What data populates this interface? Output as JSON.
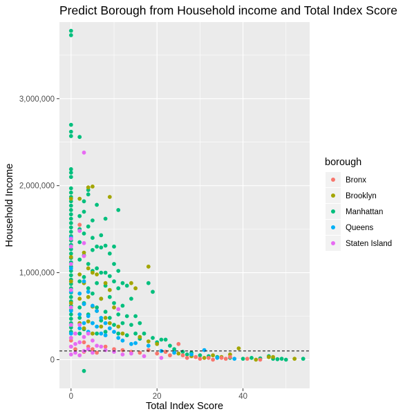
{
  "chart_data": {
    "type": "scatter",
    "title": "Predict Borough from Household income and Total Index Score",
    "xlabel": "Total Index Score",
    "ylabel": "Household Income",
    "xlim": [
      -2.7,
      55.5
    ],
    "ylim": [
      -330000,
      3880000
    ],
    "x_ticks": [
      {
        "value": 0,
        "label": "0"
      },
      {
        "value": 20,
        "label": "20"
      },
      {
        "value": 40,
        "label": "40"
      }
    ],
    "y_ticks": [
      {
        "value": 0,
        "label": "0"
      },
      {
        "value": 1000000,
        "label": "1,000,000"
      },
      {
        "value": 2000000,
        "label": "2,000,000"
      },
      {
        "value": 3000000,
        "label": "3,000,000"
      }
    ],
    "reference_line": {
      "y": 100000,
      "style": "dashed",
      "color": "#000000"
    },
    "grid": true,
    "panel_background": "#ebebeb",
    "legend": {
      "title": "borough",
      "position": "right",
      "entries": [
        {
          "label": "Bronx",
          "color": "#F8766D"
        },
        {
          "label": "Brooklyn",
          "color": "#A3A500"
        },
        {
          "label": "Manhattan",
          "color": "#00BF7D"
        },
        {
          "label": "Queens",
          "color": "#00B0F6"
        },
        {
          "label": "Staten Island",
          "color": "#E76BF3"
        }
      ]
    },
    "series": [
      {
        "name": "Manhattan",
        "color": "#00BF7D",
        "points": [
          [
            0,
            3780000
          ],
          [
            0,
            3730000
          ],
          [
            0,
            2700000
          ],
          [
            0,
            2620000
          ],
          [
            0,
            2570000
          ],
          [
            0,
            2190000
          ],
          [
            0,
            2150000
          ],
          [
            0,
            2100000
          ],
          [
            0,
            1970000
          ],
          [
            0,
            1920000
          ],
          [
            0,
            1870000
          ],
          [
            0,
            1820000
          ],
          [
            0,
            1770000
          ],
          [
            0,
            1720000
          ],
          [
            0,
            1670000
          ],
          [
            0,
            1620000
          ],
          [
            0,
            1570000
          ],
          [
            0,
            1520000
          ],
          [
            0,
            1470000
          ],
          [
            0,
            1420000
          ],
          [
            0,
            1370000
          ],
          [
            0,
            1320000
          ],
          [
            0,
            1270000
          ],
          [
            0,
            1220000
          ],
          [
            0,
            1170000
          ],
          [
            0,
            1120000
          ],
          [
            0,
            1070000
          ],
          [
            0,
            1020000
          ],
          [
            0,
            970000
          ],
          [
            0,
            920000
          ],
          [
            0,
            870000
          ],
          [
            0,
            820000
          ],
          [
            0,
            770000
          ],
          [
            0,
            720000
          ],
          [
            0,
            670000
          ],
          [
            0,
            620000
          ],
          [
            0,
            570000
          ],
          [
            0,
            520000
          ],
          [
            0,
            470000
          ],
          [
            0,
            420000
          ],
          [
            0,
            370000
          ],
          [
            0,
            320000
          ],
          [
            2,
            2560000
          ],
          [
            2,
            1650000
          ],
          [
            2,
            1500000
          ],
          [
            2,
            1350000
          ],
          [
            2,
            1150000
          ],
          [
            2,
            900000
          ],
          [
            2,
            600000
          ],
          [
            2,
            480000
          ],
          [
            2,
            300000
          ],
          [
            3,
            1820000
          ],
          [
            3,
            1700000
          ],
          [
            3,
            1450000
          ],
          [
            3,
            1200000
          ],
          [
            3,
            950000
          ],
          [
            3,
            650000
          ],
          [
            3,
            350000
          ],
          [
            3,
            -130000
          ],
          [
            4,
            1950000
          ],
          [
            4,
            1900000
          ],
          [
            4,
            1530000
          ],
          [
            4,
            1100000
          ],
          [
            4,
            820000
          ],
          [
            4,
            520000
          ],
          [
            5,
            1600000
          ],
          [
            5,
            1400000
          ],
          [
            5,
            1260000
          ],
          [
            5,
            1020000
          ],
          [
            5,
            760000
          ],
          [
            5,
            420000
          ],
          [
            6,
            1780000
          ],
          [
            6,
            1300000
          ],
          [
            6,
            1050000
          ],
          [
            6,
            880000
          ],
          [
            6,
            600000
          ],
          [
            6,
            300000
          ],
          [
            7,
            1430000
          ],
          [
            7,
            1290000
          ],
          [
            7,
            1000000
          ],
          [
            7,
            700000
          ],
          [
            7,
            450000
          ],
          [
            8,
            1620000
          ],
          [
            8,
            1310000
          ],
          [
            8,
            1000000
          ],
          [
            8,
            850000
          ],
          [
            8,
            550000
          ],
          [
            8,
            320000
          ],
          [
            9,
            1220000
          ],
          [
            9,
            960000
          ],
          [
            9,
            720000
          ],
          [
            9,
            480000
          ],
          [
            10,
            1300000
          ],
          [
            10,
            1100000
          ],
          [
            10,
            900000
          ],
          [
            10,
            650000
          ],
          [
            10,
            400000
          ],
          [
            11,
            1720000
          ],
          [
            11,
            1020000
          ],
          [
            11,
            820000
          ],
          [
            11,
            520000
          ],
          [
            11,
            300000
          ],
          [
            12,
            880000
          ],
          [
            12,
            620000
          ],
          [
            12,
            420000
          ],
          [
            13,
            850000
          ],
          [
            13,
            500000
          ],
          [
            13,
            280000
          ],
          [
            14,
            700000
          ],
          [
            14,
            400000
          ],
          [
            15,
            500000
          ],
          [
            15,
            300000
          ],
          [
            16,
            420000
          ],
          [
            16,
            240000
          ],
          [
            17,
            300000
          ],
          [
            18,
            880000
          ],
          [
            19,
            780000
          ],
          [
            19,
            250000
          ],
          [
            20,
            200000
          ],
          [
            21,
            230000
          ],
          [
            22,
            230000
          ],
          [
            23,
            160000
          ],
          [
            24,
            120000
          ],
          [
            26,
            90000
          ],
          [
            27,
            60000
          ],
          [
            28,
            80000
          ],
          [
            30,
            50000
          ],
          [
            32,
            40000
          ],
          [
            34,
            30000
          ],
          [
            37,
            20000
          ],
          [
            40,
            10000
          ],
          [
            42,
            20000
          ],
          [
            44,
            15000
          ],
          [
            46,
            40000
          ],
          [
            47,
            10000
          ],
          [
            48,
            5000
          ],
          [
            49,
            10000
          ],
          [
            50,
            0
          ],
          [
            54,
            10000
          ]
        ]
      },
      {
        "name": "Brooklyn",
        "color": "#A3A500",
        "points": [
          [
            0,
            1850000
          ],
          [
            0,
            1180000
          ],
          [
            0,
            900000
          ],
          [
            0,
            650000
          ],
          [
            0,
            400000
          ],
          [
            0,
            250000
          ],
          [
            2,
            1850000
          ],
          [
            2,
            980000
          ],
          [
            2,
            700000
          ],
          [
            2,
            420000
          ],
          [
            3,
            1230000
          ],
          [
            3,
            880000
          ],
          [
            3,
            640000
          ],
          [
            3,
            360000
          ],
          [
            4,
            1980000
          ],
          [
            4,
            1050000
          ],
          [
            4,
            720000
          ],
          [
            4,
            440000
          ],
          [
            5,
            1990000
          ],
          [
            5,
            1000000
          ],
          [
            5,
            610000
          ],
          [
            5,
            300000
          ],
          [
            6,
            980000
          ],
          [
            6,
            560000
          ],
          [
            7,
            700000
          ],
          [
            7,
            380000
          ],
          [
            8,
            880000
          ],
          [
            8,
            480000
          ],
          [
            9,
            1870000
          ],
          [
            9,
            800000
          ],
          [
            9,
            420000
          ],
          [
            10,
            600000
          ],
          [
            11,
            380000
          ],
          [
            12,
            300000
          ],
          [
            14,
            880000
          ],
          [
            15,
            820000
          ],
          [
            16,
            260000
          ],
          [
            18,
            1070000
          ],
          [
            18,
            210000
          ],
          [
            20,
            180000
          ],
          [
            22,
            90000
          ],
          [
            25,
            70000
          ],
          [
            28,
            40000
          ],
          [
            31,
            20000
          ],
          [
            33,
            50000
          ],
          [
            35,
            30000
          ],
          [
            37,
            60000
          ],
          [
            39,
            130000
          ],
          [
            43,
            0
          ],
          [
            46,
            30000
          ],
          [
            47,
            30000
          ],
          [
            52,
            10000
          ]
        ]
      },
      {
        "name": "Queens",
        "color": "#00B0F6",
        "points": [
          [
            0,
            1400000
          ],
          [
            0,
            1050000
          ],
          [
            0,
            780000
          ],
          [
            0,
            560000
          ],
          [
            0,
            400000
          ],
          [
            0,
            300000
          ],
          [
            2,
            760000
          ],
          [
            2,
            520000
          ],
          [
            2,
            360000
          ],
          [
            3,
            900000
          ],
          [
            3,
            640000
          ],
          [
            3,
            420000
          ],
          [
            4,
            780000
          ],
          [
            4,
            500000
          ],
          [
            4,
            320000
          ],
          [
            5,
            620000
          ],
          [
            5,
            420000
          ],
          [
            6,
            560000
          ],
          [
            6,
            380000
          ],
          [
            7,
            480000
          ],
          [
            7,
            300000
          ],
          [
            8,
            420000
          ],
          [
            8,
            280000
          ],
          [
            9,
            360000
          ],
          [
            10,
            320000
          ],
          [
            11,
            250000
          ],
          [
            12,
            220000
          ],
          [
            14,
            180000
          ],
          [
            15,
            190000
          ],
          [
            18,
            160000
          ],
          [
            21,
            100000
          ],
          [
            24,
            80000
          ],
          [
            28,
            60000
          ],
          [
            31,
            110000
          ],
          [
            34,
            20000
          ],
          [
            38,
            10000
          ]
        ]
      },
      {
        "name": "Bronx",
        "color": "#F8766D",
        "points": [
          [
            0,
            220000
          ],
          [
            0,
            150000
          ],
          [
            1,
            120000
          ],
          [
            2,
            1550000
          ],
          [
            3,
            200000
          ],
          [
            3,
            90000
          ],
          [
            4,
            150000
          ],
          [
            5,
            120000
          ],
          [
            6,
            80000
          ],
          [
            8,
            150000
          ],
          [
            10,
            120000
          ],
          [
            12,
            110000
          ],
          [
            14,
            90000
          ],
          [
            16,
            80000
          ],
          [
            18,
            110000
          ],
          [
            20,
            70000
          ],
          [
            22,
            90000
          ],
          [
            23,
            50000
          ],
          [
            25,
            180000
          ],
          [
            26,
            50000
          ],
          [
            27,
            20000
          ],
          [
            29,
            30000
          ],
          [
            30,
            10000
          ],
          [
            32,
            20000
          ],
          [
            33,
            0
          ],
          [
            35,
            20000
          ],
          [
            36,
            10000
          ],
          [
            37,
            30000
          ],
          [
            41,
            10000
          ],
          [
            44,
            0
          ]
        ]
      },
      {
        "name": "Staten Island",
        "color": "#E76BF3",
        "points": [
          [
            0,
            1390000
          ],
          [
            0,
            1300000
          ],
          [
            0,
            1100000
          ],
          [
            0,
            800000
          ],
          [
            0,
            600000
          ],
          [
            0,
            400000
          ],
          [
            0,
            250000
          ],
          [
            0,
            150000
          ],
          [
            0,
            60000
          ],
          [
            1,
            300000
          ],
          [
            1,
            180000
          ],
          [
            1,
            80000
          ],
          [
            2,
            1480000
          ],
          [
            2,
            400000
          ],
          [
            2,
            200000
          ],
          [
            2,
            50000
          ],
          [
            3,
            2380000
          ],
          [
            3,
            1340000
          ],
          [
            3,
            1190000
          ],
          [
            3,
            260000
          ],
          [
            3,
            100000
          ],
          [
            4,
            300000
          ],
          [
            4,
            120000
          ],
          [
            5,
            220000
          ],
          [
            5,
            80000
          ],
          [
            6,
            160000
          ],
          [
            7,
            150000
          ],
          [
            8,
            110000
          ],
          [
            10,
            90000
          ],
          [
            11,
            580000
          ],
          [
            12,
            60000
          ],
          [
            14,
            70000
          ],
          [
            17,
            40000
          ],
          [
            21,
            20000
          ]
        ]
      }
    ]
  }
}
